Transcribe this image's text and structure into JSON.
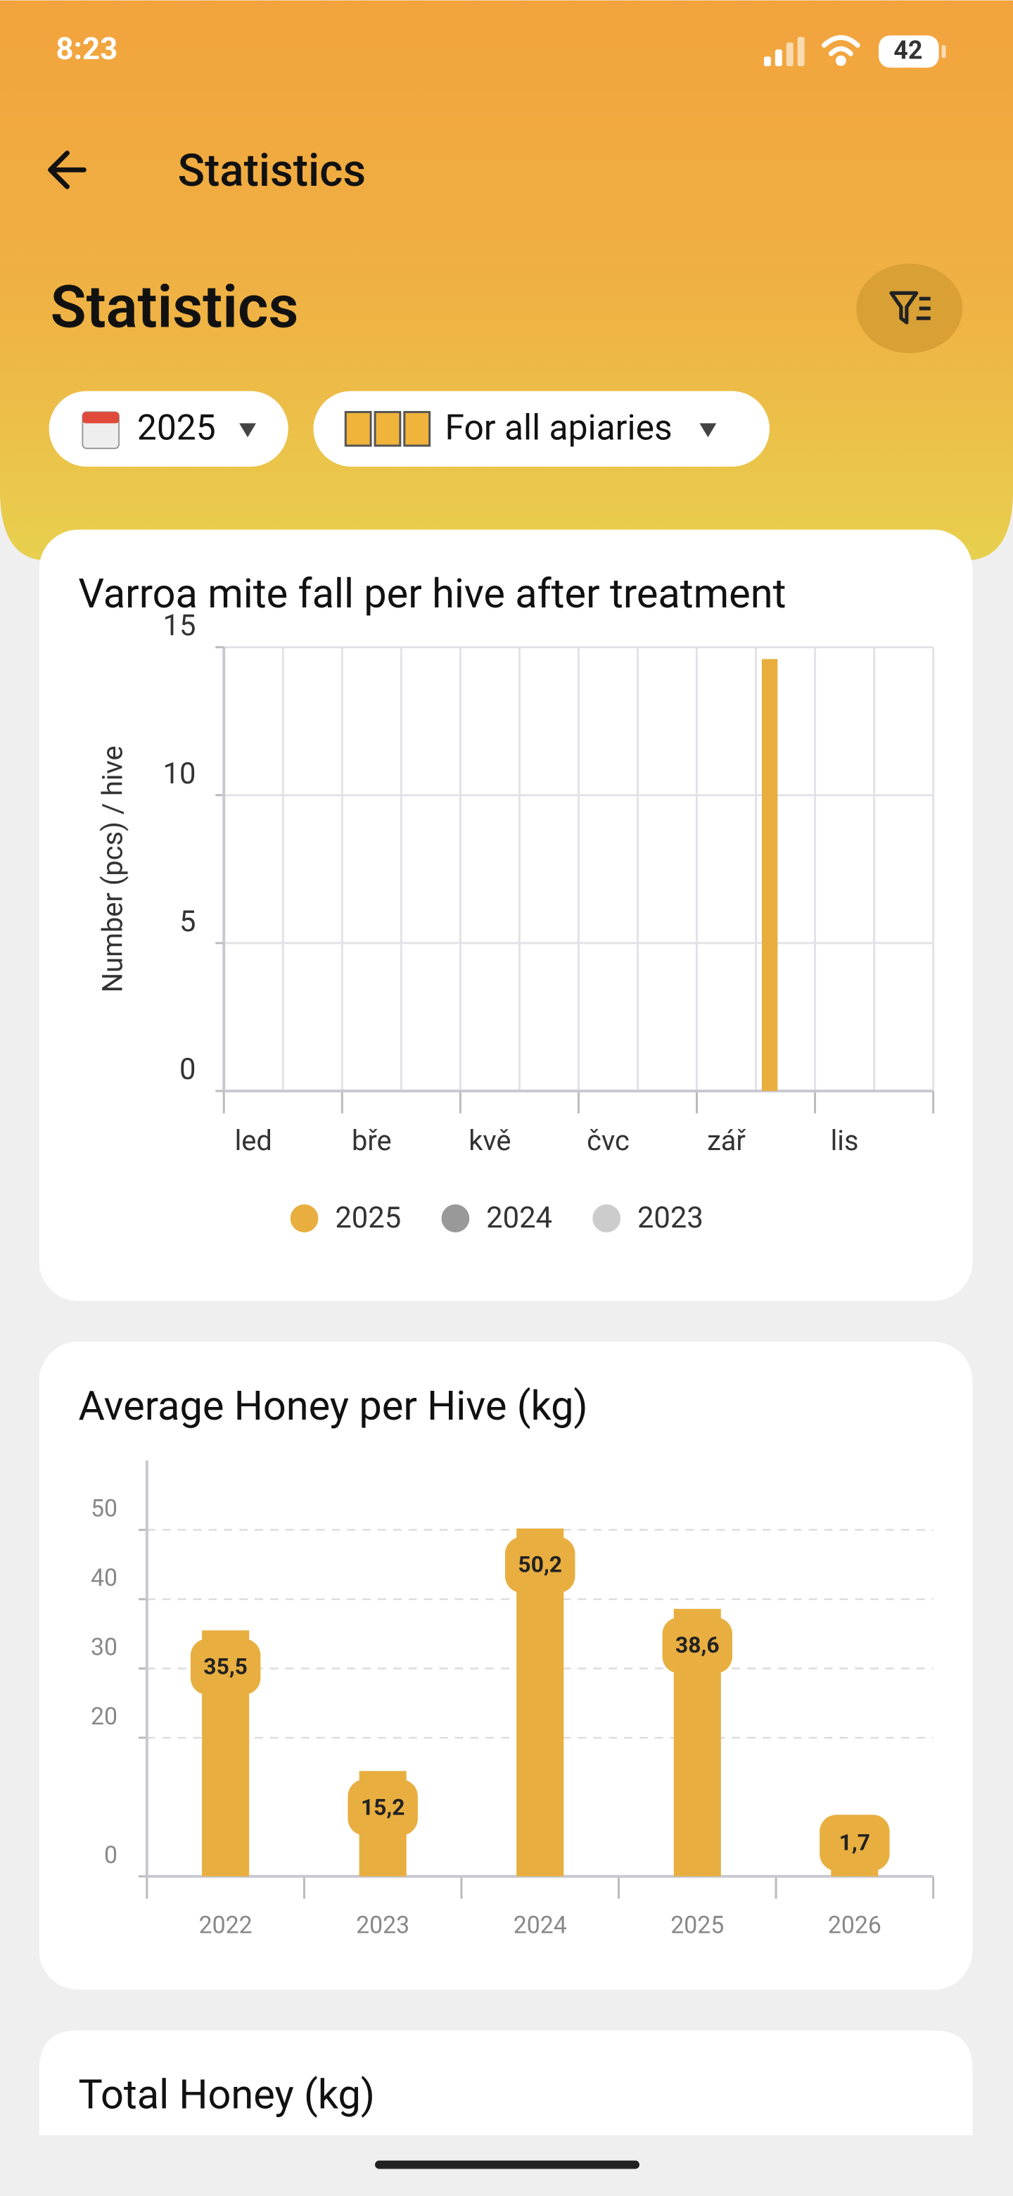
{
  "status_bar": {
    "time": "8:23",
    "battery": "42"
  },
  "app_bar": {
    "title": "Statistics"
  },
  "header": {
    "title": "Statistics"
  },
  "filters": {
    "year": "2025",
    "apiary": "For all apiaries"
  },
  "chart_data": [
    {
      "type": "bar",
      "title": "Varroa mite fall per hive after treatment",
      "y_label": "Number (pcs) / hive",
      "categories": [
        "led",
        null,
        "bře",
        null,
        "kvě",
        null,
        "čvc",
        null,
        "zář",
        null,
        "lis",
        null
      ],
      "series": [
        {
          "name": "2025",
          "color": "#E8AE40",
          "values": [
            null,
            null,
            null,
            null,
            null,
            null,
            null,
            null,
            null,
            14.6,
            null,
            null
          ]
        },
        {
          "name": "2024",
          "color": "#999999",
          "values": [
            null,
            null,
            null,
            null,
            null,
            null,
            null,
            null,
            null,
            null,
            null,
            null
          ]
        },
        {
          "name": "2023",
          "color": "#CCCCCC",
          "values": [
            null,
            null,
            null,
            null,
            null,
            null,
            null,
            null,
            null,
            null,
            null,
            null
          ]
        }
      ],
      "ylim": [
        0,
        15
      ],
      "yticks": [
        0,
        5,
        10,
        15
      ],
      "grid": true,
      "legend": "bottom"
    },
    {
      "type": "bar",
      "title": "Average Honey per Hive (kg)",
      "categories": [
        "2022",
        "2023",
        "2024",
        "2025",
        "2026"
      ],
      "values": [
        35.5,
        15.2,
        50.2,
        38.6,
        1.7
      ],
      "value_labels": [
        "35,5",
        "15,2",
        "50,2",
        "38,6",
        "1,7"
      ],
      "color": "#E8AE40",
      "ylim": [
        0,
        60
      ],
      "yticks": [
        0,
        20,
        30,
        40,
        50
      ],
      "grid": true
    },
    {
      "type": "bar",
      "title": "Total Honey (kg)"
    }
  ]
}
